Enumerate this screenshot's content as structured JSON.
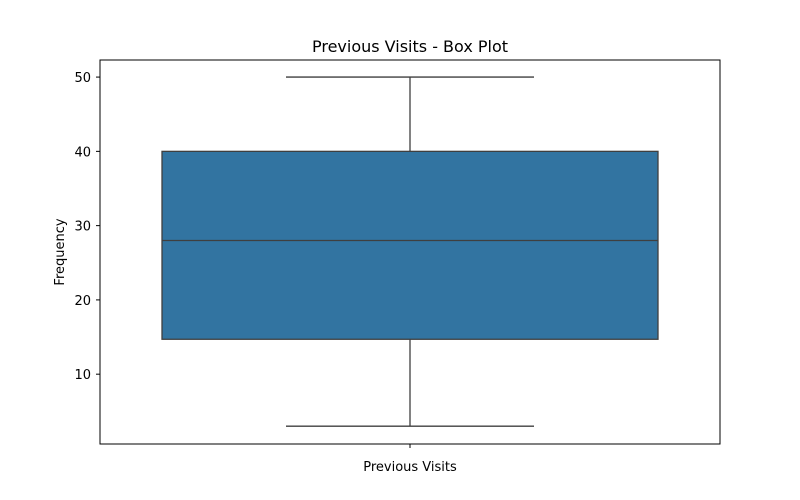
{
  "chart_data": {
    "type": "box",
    "title": "Previous Visits - Box Plot",
    "xlabel": "",
    "ylabel": "Frequency",
    "categories": [
      "Previous Visits"
    ],
    "series": [
      {
        "whisker_low": 3,
        "q1": 14.7,
        "median": 28,
        "q3": 40,
        "whisker_high": 50
      }
    ],
    "ylim": [
      0.6,
      52.3
    ],
    "yticks": [
      10,
      20,
      30,
      40,
      50
    ],
    "grid": false,
    "legend": "none",
    "colors": {
      "box_fill": "#3274a1",
      "line": "#3f3f3f",
      "axis": "#000000"
    }
  }
}
